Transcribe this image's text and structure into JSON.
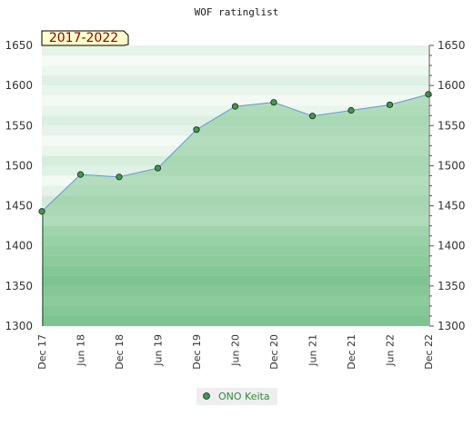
{
  "chart_data": {
    "type": "area",
    "title": "WOF ratinglist",
    "period_label": "2017-2022",
    "categories": [
      "Dec 17",
      "Jun 18",
      "Dec 18",
      "Jun 19",
      "Dec 19",
      "Jun 20",
      "Dec 20",
      "Jun 21",
      "Dec 21",
      "Jun 22",
      "Dec 22"
    ],
    "series": [
      {
        "name": "ONO Keita",
        "values": [
          1443,
          1489,
          1486,
          1497,
          1545,
          1574,
          1579,
          1562,
          1569,
          1576,
          1589
        ]
      }
    ],
    "ylim": [
      1300,
      1650
    ],
    "yticks": [
      1300,
      1350,
      1400,
      1450,
      1500,
      1550,
      1600,
      1650
    ],
    "xlabel": "",
    "ylabel": "",
    "grid": true,
    "legend": "bottom-center",
    "colors": {
      "line": "#5b9bd5",
      "marker": "#3d9a4a",
      "area": "#7fc490",
      "legend_text": "#2e8b3e",
      "period_text": "#8b0000",
      "period_bg": "#ffffcc"
    }
  }
}
